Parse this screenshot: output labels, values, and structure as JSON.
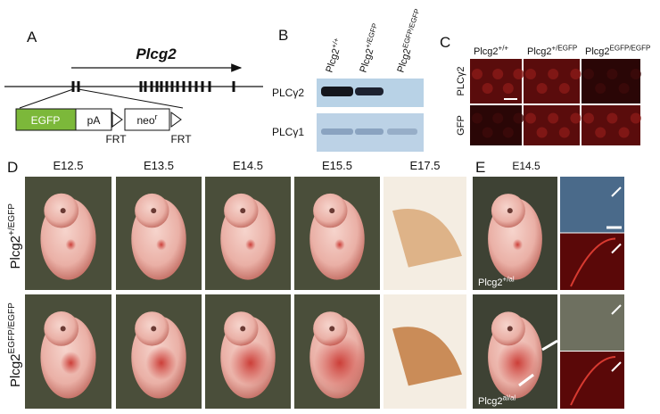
{
  "panels": {
    "a": {
      "label": "A",
      "gene": "Plcg2",
      "construct": {
        "egfp": "EGFP",
        "pa": "pA",
        "neo": {
          "base": "neo",
          "sup": "r"
        },
        "frt": [
          "FRT",
          "FRT"
        ]
      }
    },
    "b": {
      "label": "B",
      "columns": [
        {
          "base": "Plcg2",
          "sup": "+/+"
        },
        {
          "base": "Plcg2",
          "sup": "+/EGFP"
        },
        {
          "base": "Plcg2",
          "sup": "EGFP/EGFP"
        }
      ],
      "rows": [
        "PLCγ2",
        "PLCγ1"
      ]
    },
    "c": {
      "label": "C",
      "columns": [
        {
          "base": "Plcg2",
          "sup": "+/+"
        },
        {
          "base": "Plcg2",
          "sup": "+/EGFP"
        },
        {
          "base": "Plcg2",
          "sup": "EGFP/EGFP"
        }
      ],
      "rows": [
        "PLCγ2",
        "GFP"
      ]
    },
    "d": {
      "label": "D",
      "stages": [
        "E12.5",
        "E13.5",
        "E14.5",
        "E15.5",
        "E17.5"
      ],
      "rows": [
        {
          "base": "Plcg2",
          "sup": "+/EGFP"
        },
        {
          "base": "Plcg2",
          "sup": "EGFP/EGFP"
        }
      ]
    },
    "e": {
      "label": "E",
      "stage": "E14.5",
      "genotypes": [
        {
          "base": "Plcg2",
          "sup": "+/al"
        },
        {
          "base": "Plcg2",
          "sup": "al/al"
        }
      ]
    }
  }
}
